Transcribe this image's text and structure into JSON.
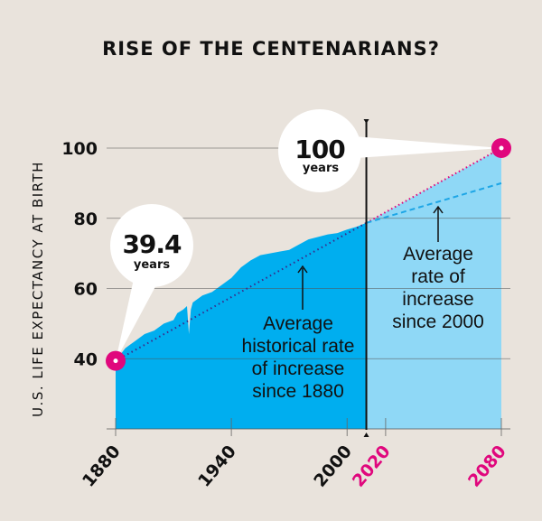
{
  "chart_data": {
    "type": "area",
    "title": "RISE OF THE CENTENARIANS?",
    "ylabel": "U.S. LIFE EXPECTANCY AT BIRTH",
    "xlabel": "",
    "xlim": [
      1880,
      2080
    ],
    "ylim": [
      20,
      100
    ],
    "yticks": [
      40,
      60,
      80,
      100
    ],
    "xticks": [
      {
        "label": "1880",
        "value": 1880,
        "color": "#111111"
      },
      {
        "label": "1940",
        "value": 1940,
        "color": "#111111"
      },
      {
        "label": "2000",
        "value": 2000,
        "color": "#111111"
      },
      {
        "label": "2020",
        "value": 2020,
        "color": "#e0077d"
      },
      {
        "label": "2080",
        "value": 2080,
        "color": "#e0077d"
      }
    ],
    "grid": true,
    "historical": {
      "x": [
        1880,
        1885,
        1890,
        1895,
        1900,
        1905,
        1910,
        1912,
        1915,
        1917,
        1918,
        1919,
        1920,
        1925,
        1930,
        1935,
        1940,
        1945,
        1950,
        1955,
        1960,
        1965,
        1970,
        1975,
        1980,
        1985,
        1990,
        1995,
        2000,
        2005,
        2010
      ],
      "y": [
        39.4,
        43,
        45,
        47,
        48,
        50,
        51,
        53,
        54,
        55,
        47,
        54,
        56,
        58,
        59,
        61,
        63,
        66,
        68,
        69.5,
        70,
        70.5,
        71,
        72.5,
        74,
        74.7,
        75.4,
        75.8,
        76.8,
        77.6,
        78.7
      ]
    },
    "projection_end_year": 2080,
    "historical_rate_projection": {
      "x": [
        1880,
        2080
      ],
      "y": [
        39.4,
        100
      ]
    },
    "since_2000_rate_projection": {
      "x": [
        2010,
        2080
      ],
      "y": [
        78.7,
        90
      ]
    },
    "divider_year": 2010,
    "callouts": [
      {
        "value": "39.4",
        "unit": "years",
        "x": 1880,
        "y": 39.4
      },
      {
        "value": "100",
        "unit": "years",
        "x": 2080,
        "y": 100
      }
    ],
    "annotations": {
      "historical": [
        "Average",
        "historical rate",
        "of increase",
        "since 1880"
      ],
      "recent": [
        "Average",
        "rate of",
        "increase",
        "since 2000"
      ]
    },
    "colors": {
      "historical_fill": "#00aeef",
      "projection_fill": "#8fd8f6",
      "marker": "#e0077d",
      "background": "#e9e3dc"
    }
  }
}
